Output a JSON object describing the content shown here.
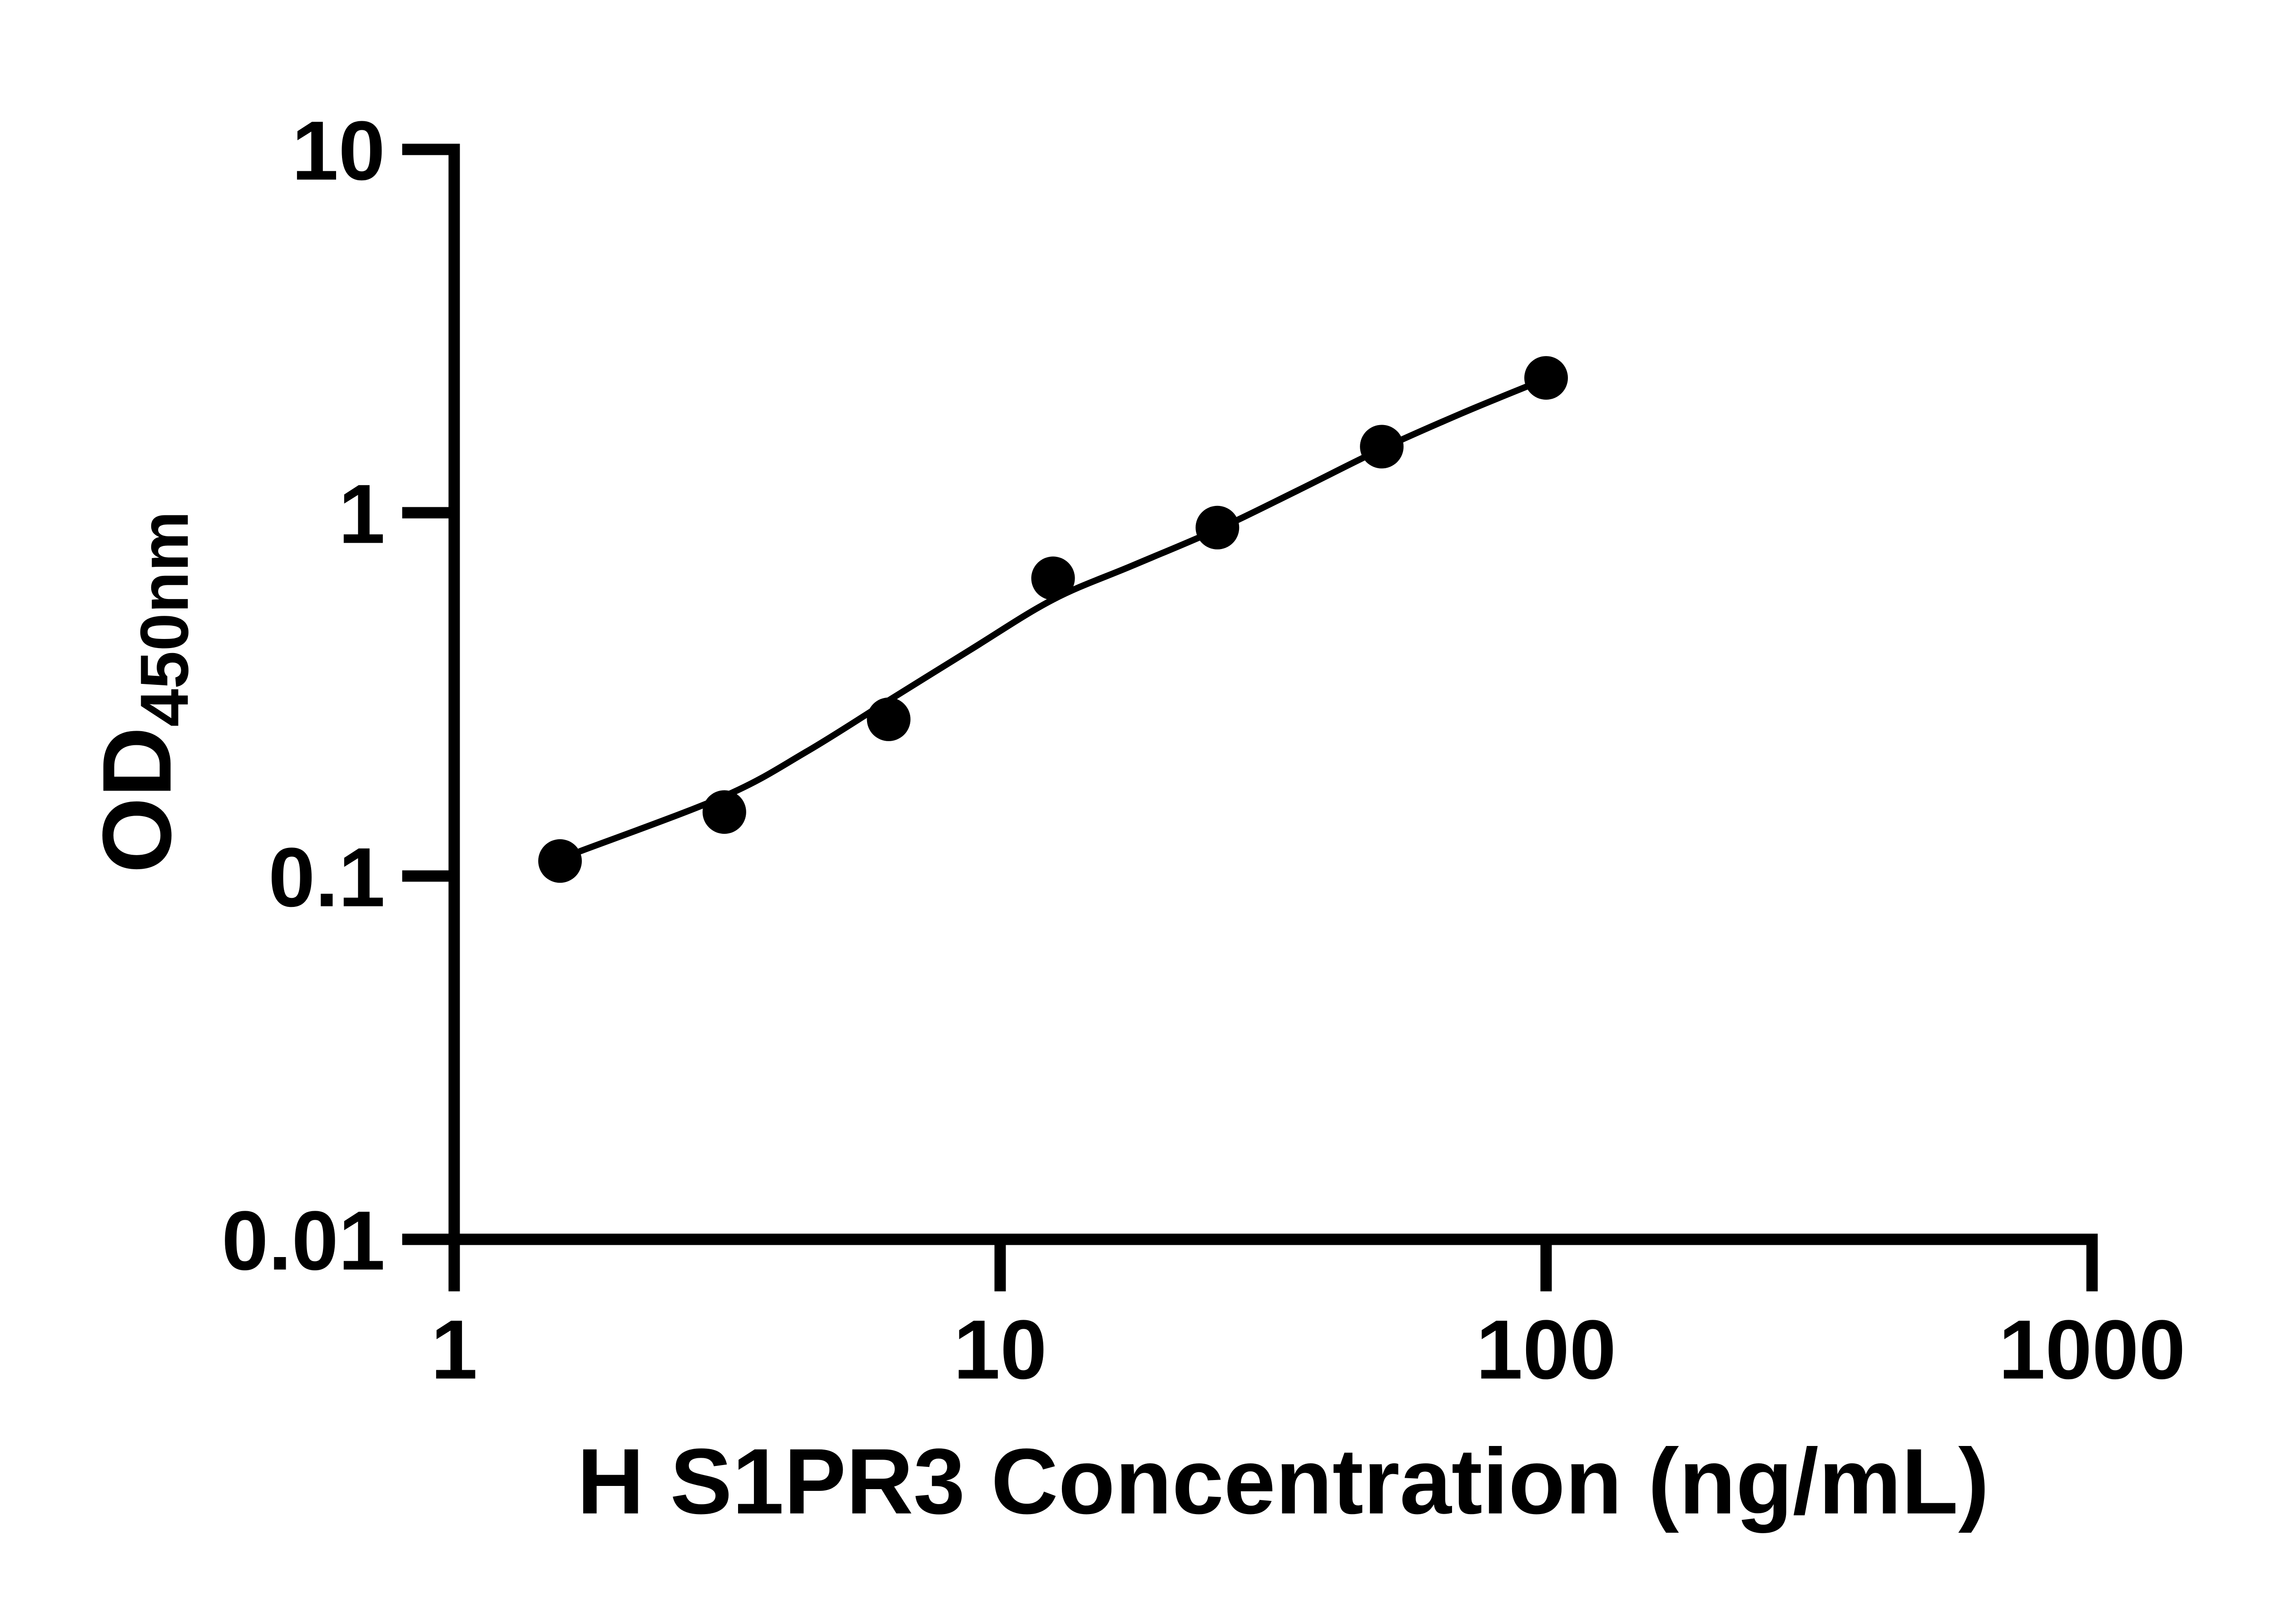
{
  "figure": {
    "background_color": "#ffffff",
    "ink_color": "#000000"
  },
  "chart_data": {
    "type": "scatter",
    "title": "",
    "xlabel": "H S1PR3 Concentration (ng/mL)",
    "ylabel_main": "OD",
    "ylabel_sub": "450nm",
    "x_scale": "log",
    "y_scale": "log",
    "xlim": [
      1,
      1000
    ],
    "ylim": [
      0.01,
      10
    ],
    "x_tick_labels": [
      "1",
      "10",
      "100",
      "1000"
    ],
    "x_tick_values": [
      1,
      10,
      100,
      1000
    ],
    "y_tick_labels": [
      "10",
      "1",
      "0.1",
      "0.01"
    ],
    "y_tick_values": [
      10,
      1,
      0.1,
      0.01
    ],
    "grid": false,
    "legend": null,
    "series": [
      {
        "name": "standard-points",
        "marker": "circle",
        "color": "#000000",
        "x": [
          1.5625,
          3.125,
          6.25,
          12.5,
          25,
          50,
          100
        ],
        "y": [
          0.11,
          0.15,
          0.27,
          0.66,
          0.91,
          1.52,
          2.35
        ]
      }
    ],
    "fit_curve": {
      "name": "fitted-curve",
      "color": "#000000",
      "x": [
        1.7,
        3.13,
        4.42,
        6.2,
        8.83,
        12.5,
        17.5,
        25.1,
        35.1,
        49.7,
        70.1,
        93.6
      ],
      "y": [
        0.117,
        0.166,
        0.22,
        0.302,
        0.42,
        0.577,
        0.716,
        0.902,
        1.152,
        1.493,
        1.878,
        2.246
      ]
    }
  }
}
